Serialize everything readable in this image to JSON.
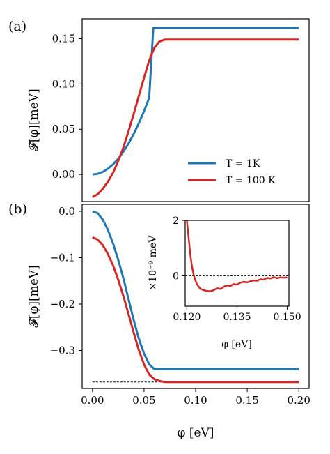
{
  "chart_data": [
    {
      "type": "line",
      "panel_label": "(a)",
      "ylabel": "𝓕[φ][meV]",
      "xlim": [
        -0.01,
        0.21
      ],
      "ylim": [
        -0.03,
        0.172
      ],
      "yticks": [
        0.0,
        0.05,
        0.1,
        0.15
      ],
      "ytick_labels": [
        "0.00",
        "0.05",
        "0.10",
        "0.15"
      ],
      "legend_position": "lower right",
      "legend": [
        "T = 1K",
        "T = 100 K"
      ],
      "series": [
        {
          "name": "T = 1K",
          "color": "#1f77b4",
          "x": [
            0.0,
            0.005,
            0.01,
            0.015,
            0.02,
            0.025,
            0.03,
            0.035,
            0.04,
            0.045,
            0.05,
            0.055,
            0.059,
            0.06,
            0.07,
            0.08,
            0.1,
            0.15,
            0.2
          ],
          "y": [
            0.0,
            0.0007,
            0.0028,
            0.0063,
            0.0112,
            0.0175,
            0.0252,
            0.0343,
            0.0448,
            0.0567,
            0.07,
            0.0847,
            0.162,
            0.162,
            0.162,
            0.162,
            0.162,
            0.162,
            0.162
          ]
        },
        {
          "name": "T = 100 K",
          "color": "#d62728",
          "x": [
            0.0,
            0.005,
            0.01,
            0.015,
            0.02,
            0.025,
            0.03,
            0.035,
            0.04,
            0.045,
            0.05,
            0.055,
            0.06,
            0.065,
            0.07,
            0.075,
            0.08,
            0.09,
            0.1,
            0.15,
            0.2
          ],
          "y": [
            -0.025,
            -0.022,
            -0.016,
            -0.008,
            0.002,
            0.015,
            0.03,
            0.048,
            0.067,
            0.087,
            0.107,
            0.126,
            0.14,
            0.147,
            0.149,
            0.149,
            0.149,
            0.149,
            0.149,
            0.149,
            0.149
          ]
        }
      ]
    },
    {
      "type": "line",
      "panel_label": "(b)",
      "ylabel": "𝓕[φ][meV]",
      "xlabel": "φ [eV]",
      "xlim": [
        -0.01,
        0.21
      ],
      "ylim": [
        -0.382,
        0.015
      ],
      "xticks": [
        0.0,
        0.05,
        0.1,
        0.15,
        0.2
      ],
      "xtick_labels": [
        "0.00",
        "0.05",
        "0.10",
        "0.15",
        "0.20"
      ],
      "yticks": [
        0.0,
        -0.1,
        -0.2,
        -0.3
      ],
      "ytick_labels": [
        "0.0",
        "−0.1",
        "−0.2",
        "−0.3"
      ],
      "reference_line_y": -0.368,
      "series": [
        {
          "name": "T = 1K",
          "color": "#1f77b4",
          "x": [
            0.0,
            0.005,
            0.01,
            0.015,
            0.02,
            0.025,
            0.03,
            0.035,
            0.04,
            0.045,
            0.05,
            0.055,
            0.06,
            0.065,
            0.07,
            0.08,
            0.1,
            0.15,
            0.2
          ],
          "y": [
            0.0,
            -0.004,
            -0.018,
            -0.04,
            -0.07,
            -0.105,
            -0.145,
            -0.19,
            -0.235,
            -0.275,
            -0.307,
            -0.33,
            -0.34,
            -0.34,
            -0.34,
            -0.34,
            -0.34,
            -0.34,
            -0.34
          ]
        },
        {
          "name": "T = 100 K",
          "color": "#d62728",
          "x": [
            0.0,
            0.005,
            0.01,
            0.015,
            0.02,
            0.025,
            0.03,
            0.035,
            0.04,
            0.045,
            0.05,
            0.055,
            0.06,
            0.065,
            0.07,
            0.08,
            0.1,
            0.15,
            0.2
          ],
          "y": [
            -0.056,
            -0.061,
            -0.073,
            -0.092,
            -0.117,
            -0.148,
            -0.183,
            -0.222,
            -0.262,
            -0.3,
            -0.33,
            -0.352,
            -0.362,
            -0.366,
            -0.368,
            -0.368,
            -0.368,
            -0.368,
            -0.368
          ]
        }
      ]
    },
    {
      "type": "line",
      "inset": true,
      "ylabel": "×10⁻⁹ meV",
      "xlabel": "φ [eV]",
      "xlim": [
        0.1195,
        0.1505
      ],
      "ylim": [
        -1.1,
        2.0
      ],
      "xticks": [
        0.12,
        0.135,
        0.15
      ],
      "xtick_labels": [
        "0.120",
        "0.135",
        "0.150"
      ],
      "yticks": [
        0,
        2
      ],
      "ytick_labels": [
        "0",
        "2"
      ],
      "reference_line_y": 0,
      "series": [
        {
          "name": "T = 100 K",
          "color": "#d62728",
          "x": [
            0.12,
            0.1205,
            0.121,
            0.1215,
            0.122,
            0.1225,
            0.123,
            0.124,
            0.125,
            0.126,
            0.127,
            0.128,
            0.129,
            0.13,
            0.131,
            0.132,
            0.133,
            0.134,
            0.135,
            0.136,
            0.137,
            0.138,
            0.139,
            0.14,
            0.141,
            0.142,
            0.143,
            0.144,
            0.145,
            0.146,
            0.147,
            0.148,
            0.149,
            0.15
          ],
          "y": [
            2.0,
            1.4,
            0.8,
            0.35,
            0.05,
            -0.15,
            -0.3,
            -0.47,
            -0.52,
            -0.55,
            -0.56,
            -0.52,
            -0.45,
            -0.48,
            -0.4,
            -0.35,
            -0.37,
            -0.3,
            -0.32,
            -0.25,
            -0.22,
            -0.24,
            -0.2,
            -0.17,
            -0.18,
            -0.13,
            -0.14,
            -0.08,
            -0.1,
            -0.05,
            -0.09,
            -0.06,
            -0.07,
            -0.06
          ]
        }
      ]
    }
  ]
}
